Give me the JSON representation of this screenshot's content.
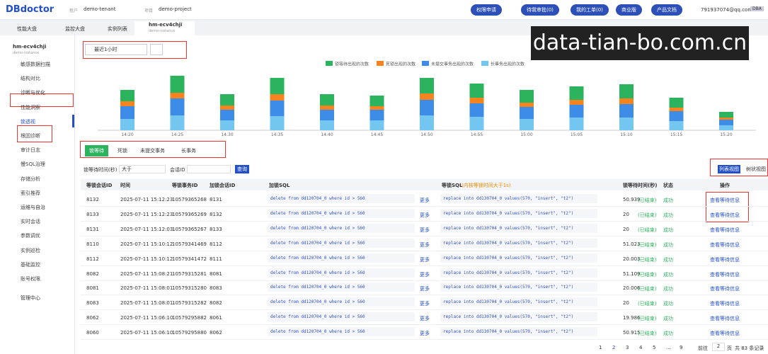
{
  "topbar": {
    "logo": "DBdoctor",
    "tenant_label": "租户",
    "tenant": "demo-tenant",
    "project_label": "项目",
    "project": "demo-project",
    "buttons": [
      "权限申请",
      "待我审批(0)",
      "我的工单(0)",
      "商业版",
      "产品文档"
    ],
    "user": "791937074@qq.com",
    "role": "DBA"
  },
  "tabs": [
    "性能大盘",
    "监控大盘",
    "实例列表"
  ],
  "active_tab": {
    "title": "hm-ecv4chji",
    "subtitle": "demo-instance"
  },
  "watermark": "data-tian-bo.com.cn",
  "sidebar": {
    "instance": "hm-ecv4chji",
    "instance_sub": "demo-instance",
    "items": [
      {
        "label": "敏感数据扫描"
      },
      {
        "label": "结构对比"
      },
      {
        "label": "诊断与优化",
        "section": true
      },
      {
        "label": "性能洞察"
      },
      {
        "label": "锁透视",
        "active": true
      },
      {
        "label": "根因诊断"
      },
      {
        "label": "审计日志"
      },
      {
        "label": "慢SQL治理"
      },
      {
        "label": "存储分析"
      },
      {
        "label": "索引推荐"
      },
      {
        "label": "运维与自治",
        "section": true
      },
      {
        "label": "实时会话"
      },
      {
        "label": "参数调优"
      },
      {
        "label": "实例巡检"
      },
      {
        "label": "基础监控"
      },
      {
        "label": "账号权限"
      },
      {
        "label": "管理中心",
        "section": true
      }
    ]
  },
  "time_range": "最近1小时",
  "chart_data": {
    "type": "bar",
    "stacked": true,
    "categories": [
      "14:20",
      "14:25",
      "14:30",
      "14:35",
      "14:40",
      "14:45",
      "14:50",
      "14:55",
      "15:00",
      "15:05",
      "15:10",
      "15:15",
      "15:20"
    ],
    "series": [
      {
        "name": "锁等待出现的次数",
        "color": "#2bb35e",
        "values": [
          16,
          24,
          16,
          23,
          16,
          15,
          22,
          20,
          18,
          19,
          20,
          14,
          8
        ]
      },
      {
        "name": "死锁出现的次数",
        "color": "#f5841f",
        "values": [
          7,
          8,
          6,
          9,
          6,
          5,
          9,
          8,
          6,
          7,
          8,
          5,
          3
        ]
      },
      {
        "name": "未提交事务出现的次数",
        "color": "#3d8ce8",
        "values": [
          18,
          24,
          15,
          22,
          15,
          15,
          22,
          19,
          17,
          18,
          19,
          14,
          8
        ]
      },
      {
        "name": "长事务出现的次数",
        "color": "#72c6ef",
        "values": [
          16,
          21,
          14,
          20,
          14,
          14,
          21,
          19,
          16,
          18,
          18,
          13,
          7
        ]
      }
    ],
    "ylim": [
      0,
      80
    ],
    "legend": "top"
  },
  "lock_tabs": [
    "锁等待",
    "死锁",
    "未提交事务",
    "长事务"
  ],
  "filter": {
    "wait_label": "锁等待时间(秒)",
    "op": "大于",
    "session_label": "会话ID",
    "query": "查询"
  },
  "views": [
    "列表视图",
    "树状视图"
  ],
  "table": {
    "columns": [
      "等锁会话ID",
      "时间",
      "等锁事务ID",
      "加锁会话ID",
      "加锁SQL",
      "等锁SQL",
      "锁等待时间(秒)",
      "状态",
      "操作"
    ],
    "wait_sql_note": "(内核等锁时间大于1s)",
    "rows": [
      [
        "8132",
        "2025-07-11 15:12:23",
        "10579365268",
        "8131",
        "delete from dd120704_0 where id > 560",
        "更多",
        "replace into dd130704_0 values(570, \"insert\", \"t2\")",
        "50.939",
        "(已结束)",
        "成功",
        "查看等待信息"
      ],
      [
        "8133",
        "2025-07-11 15:12:23",
        "10579365269",
        "8132",
        "delete from dd120704_0 where id > 560",
        "更多",
        "replace into dd130704_0 values(570, \"insert\", \"t2\")",
        "20",
        "(已结束)",
        "成功",
        "查看等待信息"
      ],
      [
        "8131",
        "2025-07-11 15:12:03",
        "10579365267",
        "8133",
        "delete from dd120704_0 where id > 560",
        "更多",
        "replace into dd130704_0 values(570, \"insert\", \"t2\")",
        "20",
        "(已结束)",
        "成功",
        "查看等待信息"
      ],
      [
        "8110",
        "2025-07-11 15:10:12",
        "10579341469",
        "8112",
        "delete from dd120704_0 where id > 560",
        "更多",
        "replace into dd130704_0 values(570, \"insert\", \"t2\")",
        "51.023",
        "(已结束)",
        "成功",
        "查看等待信息"
      ],
      [
        "8112",
        "2025-07-11 15:10:12",
        "10579341472",
        "8111",
        "delete from dd120704_0 where id > 560",
        "更多",
        "replace into dd130704_0 values(570, \"insert\", \"t2\")",
        "20.003",
        "(已结束)",
        "成功",
        "查看等待信息"
      ],
      [
        "8082",
        "2025-07-11 15:08:21",
        "10579315281",
        "8081",
        "delete from dd120704_0 where id > 560",
        "更多",
        "replace into dd130704_0 values(570, \"insert\", \"t2\")",
        "51.109",
        "(已结束)",
        "成功",
        "查看等待信息"
      ],
      [
        "8081",
        "2025-07-11 15:08:01",
        "10579315280",
        "8083",
        "delete from dd120704_0 where id > 560",
        "更多",
        "replace into dd130704_0 values(570, \"insert\", \"t2\")",
        "20.006",
        "(已结束)",
        "成功",
        "查看等待信息"
      ],
      [
        "8083",
        "2025-07-11 15:08:01",
        "10579315282",
        "8082",
        "delete from dd120704_0 where id > 560",
        "更多",
        "replace into dd130704_0 values(570, \"insert\", \"t2\")",
        "20",
        "(已结束)",
        "成功",
        "查看等待信息"
      ],
      [
        "8062",
        "2025-07-11 15:06:10",
        "10579295882",
        "8061",
        "delete from dd120704_0 where id > 560",
        "更多",
        "replace into dd130704_0 values(570, \"insert\", \"t2\")",
        "19.986",
        "(已结束)",
        "成功",
        "查看等待信息"
      ],
      [
        "8060",
        "2025-07-11 15:06:10",
        "10579295880",
        "8062",
        "delete from dd120704_0 where id > 560",
        "更多",
        "replace into dd130704_0 values(570, \"insert\", \"t2\")",
        "50.915",
        "(已结束)",
        "成功",
        "查看等待信息"
      ]
    ]
  },
  "pagination": {
    "pages": [
      "1",
      "2",
      "3",
      "4",
      "5",
      "...",
      "9"
    ],
    "current": "2",
    "goto": "前往",
    "page_input": "2",
    "page_unit": "页",
    "total": "共 83 条记录"
  }
}
